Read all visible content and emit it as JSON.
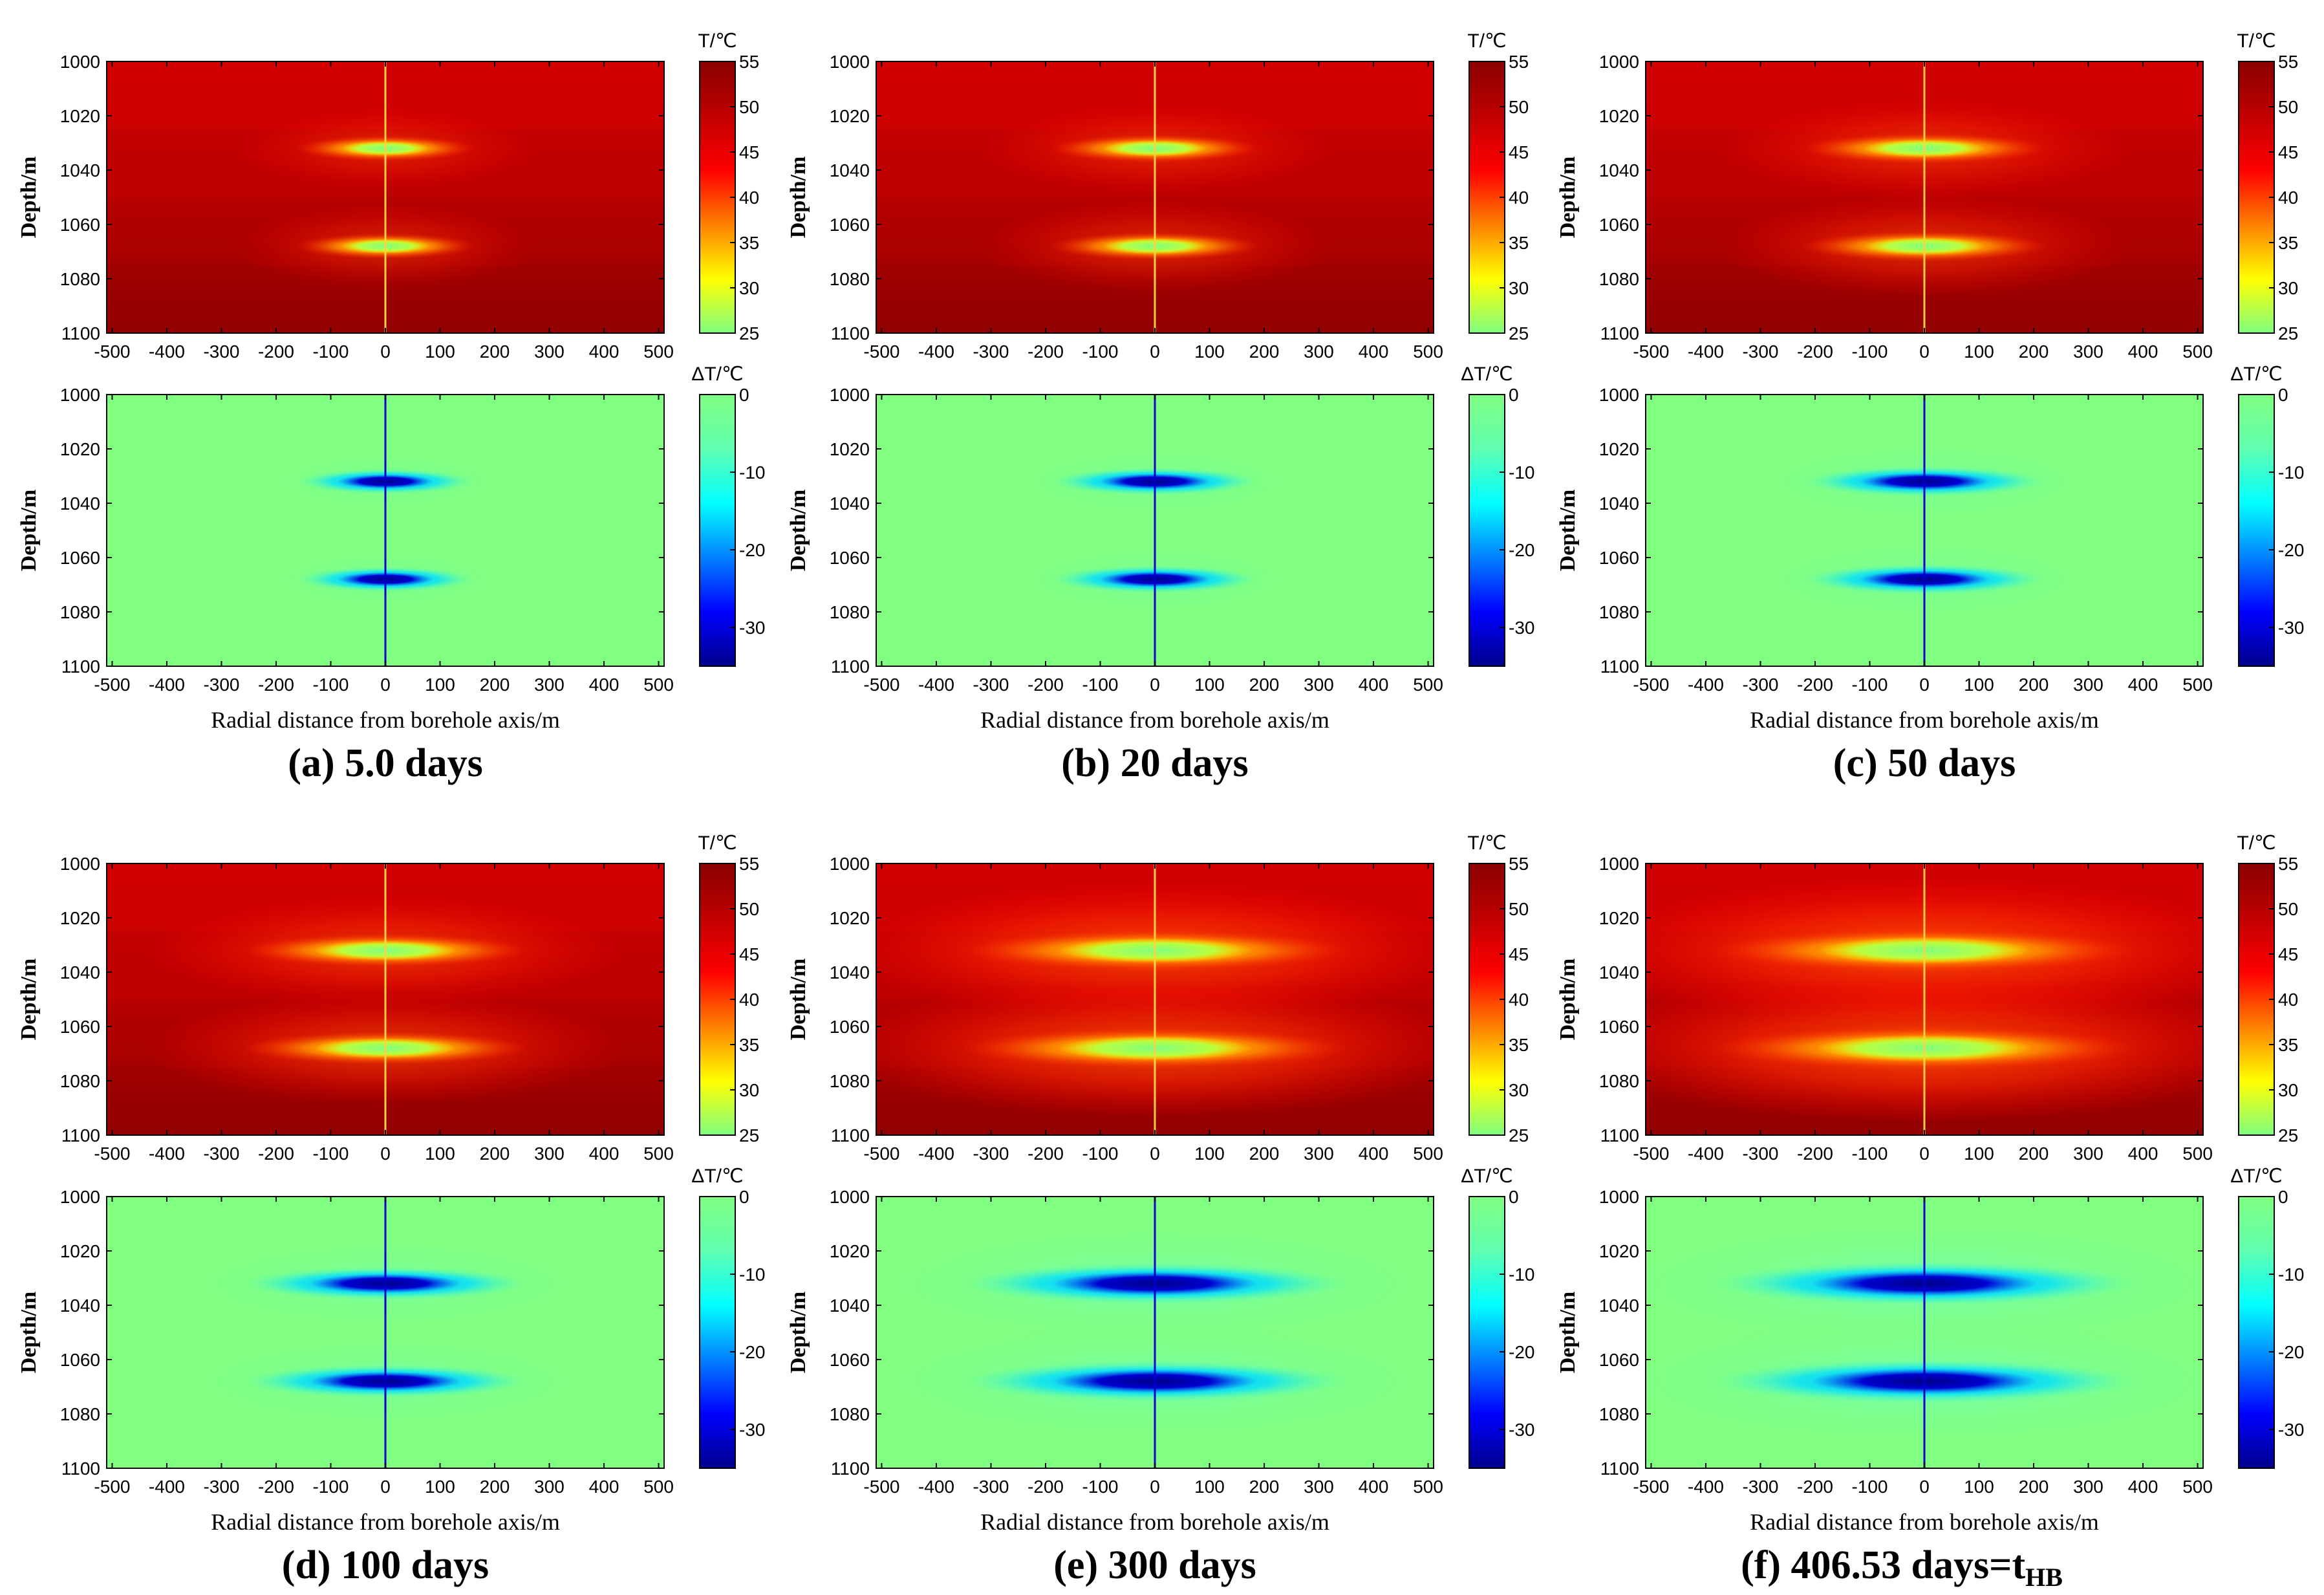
{
  "chart_data": [
    {
      "type": "heatmap",
      "panel": "a",
      "caption": "(a) 5.0 days",
      "days": 5.0,
      "caption_sub": "",
      "temperature": {
        "colorbar_title": "T/℃",
        "clim": [
          25,
          55
        ],
        "ticks": [
          "55",
          "50",
          "45",
          "40",
          "35",
          "30",
          "25"
        ],
        "ylabel": "Depth/m"
      },
      "delta": {
        "colorbar_title": "ΔT/℃",
        "clim": [
          -35,
          0
        ],
        "ticks": [
          "0",
          "-10",
          "-20",
          "-30"
        ],
        "ylabel": "Depth/m",
        "xlabel": "Radial distance from borehole axis/m"
      },
      "x_ticks": [
        "-500",
        "-400",
        "-300",
        "-200",
        "-100",
        "0",
        "100",
        "200",
        "300",
        "400",
        "500"
      ],
      "y_ticks": [
        "1000",
        "1020",
        "1040",
        "1060",
        "1080",
        "1100"
      ],
      "xlim": [
        -510,
        510
      ],
      "ylim": [
        1000,
        1100
      ],
      "source_depths": [
        1032,
        1068
      ]
    },
    {
      "type": "heatmap",
      "panel": "b",
      "caption": "(b) 20 days",
      "days": 20,
      "caption_sub": "",
      "temperature": {
        "colorbar_title": "T/℃",
        "clim": [
          25,
          55
        ],
        "ticks": [
          "55",
          "50",
          "45",
          "40",
          "35",
          "30",
          "25"
        ],
        "ylabel": "Depth/m"
      },
      "delta": {
        "colorbar_title": "ΔT/℃",
        "clim": [
          -35,
          0
        ],
        "ticks": [
          "0",
          "-10",
          "-20",
          "-30"
        ],
        "ylabel": "Depth/m",
        "xlabel": "Radial distance from borehole axis/m"
      },
      "x_ticks": [
        "-500",
        "-400",
        "-300",
        "-200",
        "-100",
        "0",
        "100",
        "200",
        "300",
        "400",
        "500"
      ],
      "y_ticks": [
        "1000",
        "1020",
        "1040",
        "1060",
        "1080",
        "1100"
      ],
      "xlim": [
        -510,
        510
      ],
      "ylim": [
        1000,
        1100
      ],
      "source_depths": [
        1032,
        1068
      ]
    },
    {
      "type": "heatmap",
      "panel": "c",
      "caption": "(c) 50 days",
      "days": 50,
      "caption_sub": "",
      "temperature": {
        "colorbar_title": "T/℃",
        "clim": [
          25,
          55
        ],
        "ticks": [
          "55",
          "50",
          "45",
          "40",
          "35",
          "30",
          "25"
        ],
        "ylabel": "Depth/m"
      },
      "delta": {
        "colorbar_title": "ΔT/℃",
        "clim": [
          -35,
          0
        ],
        "ticks": [
          "0",
          "-10",
          "-20",
          "-30"
        ],
        "ylabel": "Depth/m",
        "xlabel": "Radial distance from borehole axis/m"
      },
      "x_ticks": [
        "-500",
        "-400",
        "-300",
        "-200",
        "-100",
        "0",
        "100",
        "200",
        "300",
        "400",
        "500"
      ],
      "y_ticks": [
        "1000",
        "1020",
        "1040",
        "1060",
        "1080",
        "1100"
      ],
      "xlim": [
        -510,
        510
      ],
      "ylim": [
        1000,
        1100
      ],
      "source_depths": [
        1032,
        1068
      ]
    },
    {
      "type": "heatmap",
      "panel": "d",
      "caption": "(d) 100 days",
      "days": 100,
      "caption_sub": "",
      "temperature": {
        "colorbar_title": "T/℃",
        "clim": [
          25,
          55
        ],
        "ticks": [
          "55",
          "50",
          "45",
          "40",
          "35",
          "30",
          "25"
        ],
        "ylabel": "Depth/m"
      },
      "delta": {
        "colorbar_title": "ΔT/℃",
        "clim": [
          -35,
          0
        ],
        "ticks": [
          "0",
          "-10",
          "-20",
          "-30"
        ],
        "ylabel": "Depth/m",
        "xlabel": "Radial distance from borehole axis/m"
      },
      "x_ticks": [
        "-500",
        "-400",
        "-300",
        "-200",
        "-100",
        "0",
        "100",
        "200",
        "300",
        "400",
        "500"
      ],
      "y_ticks": [
        "1000",
        "1020",
        "1040",
        "1060",
        "1080",
        "1100"
      ],
      "xlim": [
        -510,
        510
      ],
      "ylim": [
        1000,
        1100
      ],
      "source_depths": [
        1032,
        1068
      ]
    },
    {
      "type": "heatmap",
      "panel": "e",
      "caption": "(e) 300 days",
      "days": 300,
      "caption_sub": "",
      "temperature": {
        "colorbar_title": "T/℃",
        "clim": [
          25,
          55
        ],
        "ticks": [
          "55",
          "50",
          "45",
          "40",
          "35",
          "30",
          "25"
        ],
        "ylabel": "Depth/m"
      },
      "delta": {
        "colorbar_title": "ΔT/℃",
        "clim": [
          -35,
          0
        ],
        "ticks": [
          "0",
          "-10",
          "-20",
          "-30"
        ],
        "ylabel": "Depth/m",
        "xlabel": "Radial distance from borehole axis/m"
      },
      "x_ticks": [
        "-500",
        "-400",
        "-300",
        "-200",
        "-100",
        "0",
        "100",
        "200",
        "300",
        "400",
        "500"
      ],
      "y_ticks": [
        "1000",
        "1020",
        "1040",
        "1060",
        "1080",
        "1100"
      ],
      "xlim": [
        -510,
        510
      ],
      "ylim": [
        1000,
        1100
      ],
      "source_depths": [
        1032,
        1068
      ]
    },
    {
      "type": "heatmap",
      "panel": "f",
      "caption": "(f) 406.53 days=t",
      "days": 406.53,
      "caption_sub": "HB",
      "temperature": {
        "colorbar_title": "T/℃",
        "clim": [
          25,
          55
        ],
        "ticks": [
          "55",
          "50",
          "45",
          "40",
          "35",
          "30",
          "25"
        ],
        "ylabel": "Depth/m"
      },
      "delta": {
        "colorbar_title": "ΔT/℃",
        "clim": [
          -35,
          0
        ],
        "ticks": [
          "0",
          "-10",
          "-20",
          "-30"
        ],
        "ylabel": "Depth/m",
        "xlabel": "Radial distance from borehole axis/m"
      },
      "x_ticks": [
        "-500",
        "-400",
        "-300",
        "-200",
        "-100",
        "0",
        "100",
        "200",
        "300",
        "400",
        "500"
      ],
      "y_ticks": [
        "1000",
        "1020",
        "1040",
        "1060",
        "1080",
        "1100"
      ],
      "xlim": [
        -510,
        510
      ],
      "ylim": [
        1000,
        1100
      ],
      "source_depths": [
        1032,
        1068
      ]
    }
  ],
  "colors": {
    "background": "#ffffff",
    "axis": "#000000",
    "temperature_colormap": [
      "#80ff80",
      "#ffff00",
      "#ff8000",
      "#ff0000",
      "#c00000",
      "#8b0000"
    ],
    "delta_colormap": [
      "#00008b",
      "#0000ff",
      "#0080ff",
      "#00ffff",
      "#60ffb0",
      "#80ff80"
    ]
  }
}
